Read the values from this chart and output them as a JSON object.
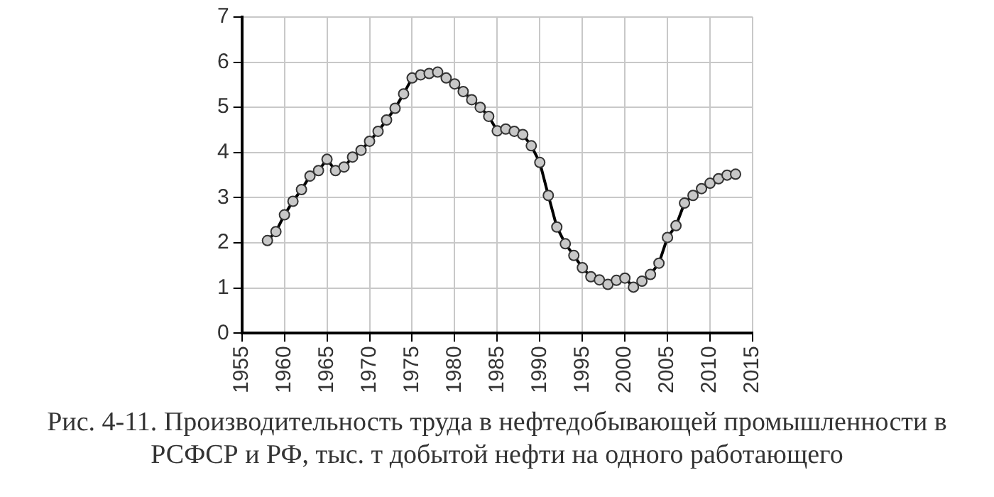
{
  "chart_data": {
    "type": "line",
    "title": "Рис. 4-11. Производительность труда в нефтедобывающей промышленности в РСФСР и РФ, тыс. т добытой нефти на одного работающего",
    "x": [
      1958,
      1959,
      1960,
      1961,
      1962,
      1963,
      1964,
      1965,
      1966,
      1967,
      1968,
      1969,
      1970,
      1971,
      1972,
      1973,
      1974,
      1975,
      1976,
      1977,
      1978,
      1979,
      1980,
      1981,
      1982,
      1983,
      1984,
      1985,
      1986,
      1987,
      1988,
      1989,
      1990,
      1991,
      1992,
      1993,
      1994,
      1995,
      1996,
      1997,
      1998,
      1999,
      2000,
      2001,
      2002,
      2003,
      2004,
      2005,
      2006,
      2007,
      2008,
      2009,
      2010,
      2011,
      2012,
      2013
    ],
    "series": [
      {
        "color": "#000000",
        "values": [
          2.05,
          2.25,
          2.62,
          2.92,
          3.18,
          3.48,
          3.6,
          3.85,
          3.6,
          3.68,
          3.9,
          4.05,
          4.25,
          4.47,
          4.72,
          4.98,
          5.3,
          5.65,
          5.72,
          5.75,
          5.78,
          5.65,
          5.52,
          5.35,
          5.17,
          5.0,
          4.8,
          4.48,
          4.52,
          4.47,
          4.4,
          4.15,
          3.78,
          3.05,
          2.35,
          1.98,
          1.72,
          1.45,
          1.25,
          1.18,
          1.08,
          1.17,
          1.22,
          1.02,
          1.15,
          1.3,
          1.55,
          2.12,
          2.38,
          2.88,
          3.05,
          3.2,
          3.32,
          3.42,
          3.5,
          3.52
        ]
      }
    ],
    "xlim": [
      1955,
      2015
    ],
    "xticks": [
      1955,
      1960,
      1965,
      1970,
      1975,
      1980,
      1985,
      1990,
      1995,
      2000,
      2005,
      2010,
      2015
    ],
    "ylim": [
      0,
      7
    ],
    "yticks": [
      0,
      1,
      2,
      3,
      4,
      5,
      6,
      7
    ],
    "grid": true,
    "legend": false,
    "marker": "circle",
    "line_style": "solid"
  }
}
